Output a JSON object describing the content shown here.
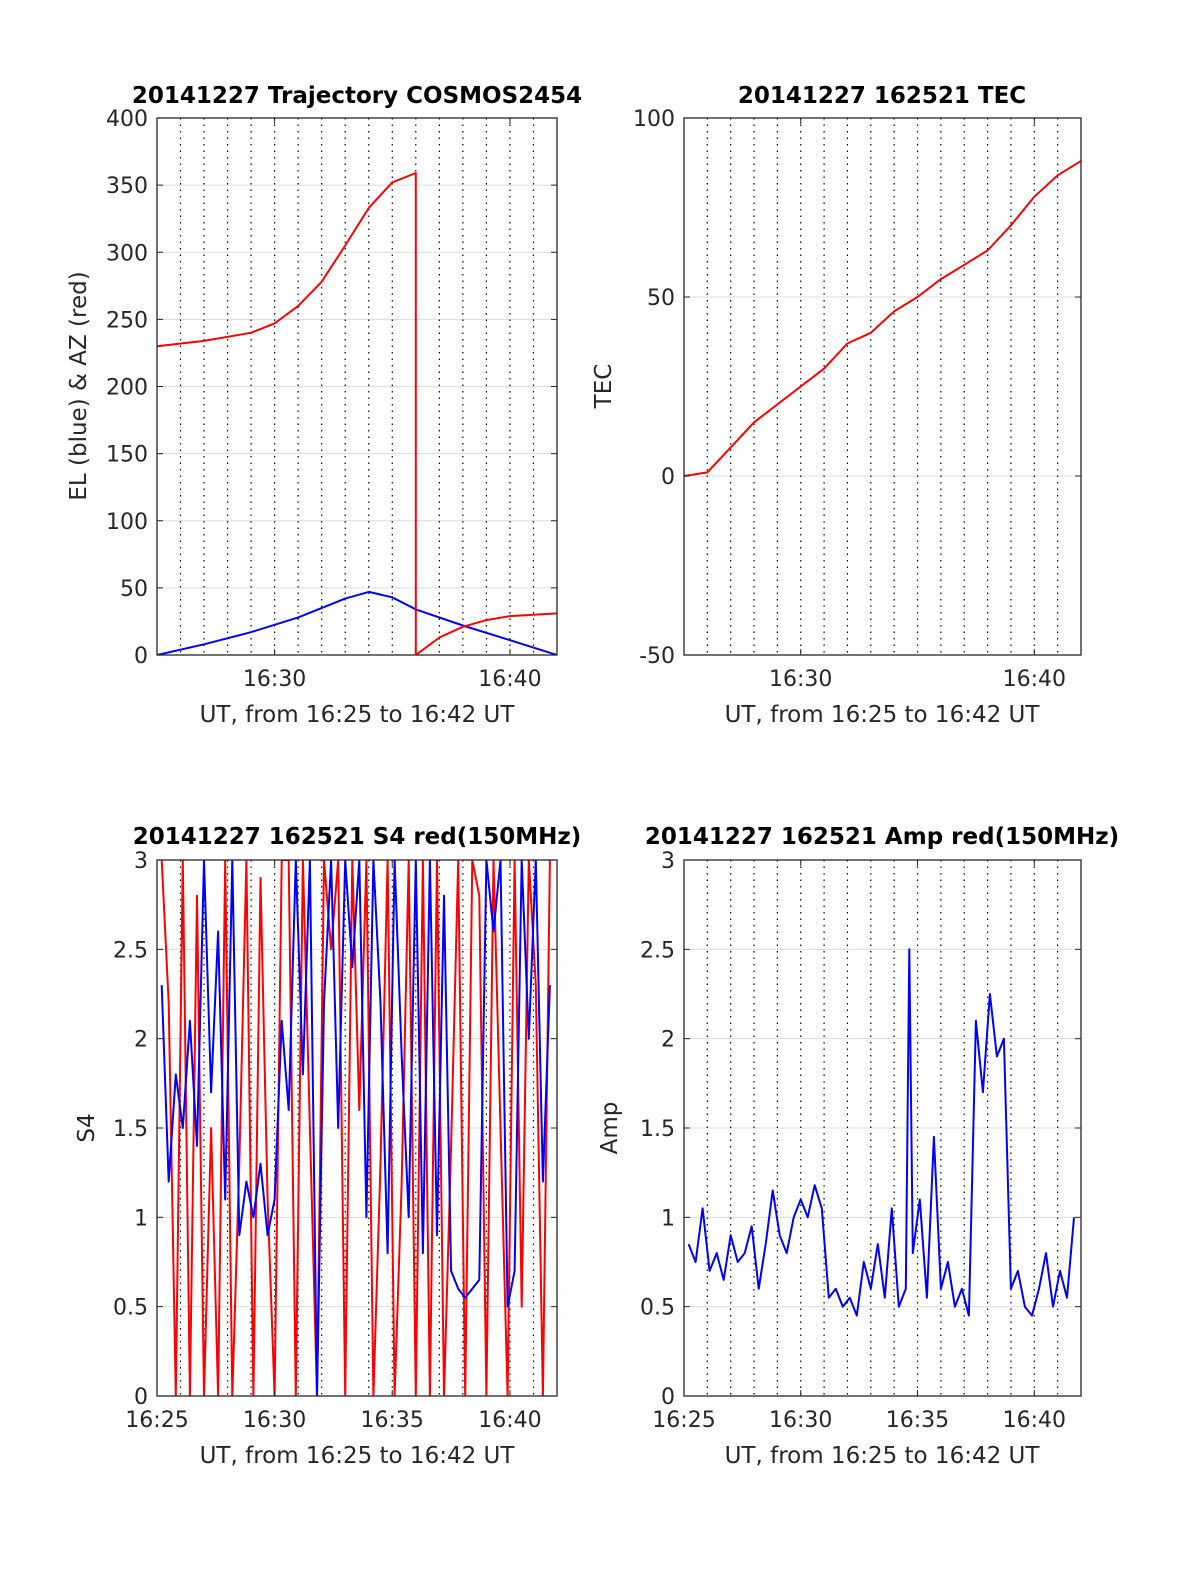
{
  "chart_data": [
    {
      "type": "line",
      "title": "20141227 Trajectory COSMOS2454",
      "xlabel": "UT, from 16:25 to 16:42 UT",
      "ylabel": "EL (blue) & AZ (red)",
      "xlim": [
        16.4167,
        16.7
      ],
      "ylim": [
        0,
        400
      ],
      "xticks": [
        {
          "value": 16.5,
          "label": "16:30"
        },
        {
          "value": 16.6667,
          "label": "16:40"
        }
      ],
      "yticks": [
        0,
        50,
        100,
        150,
        200,
        250,
        300,
        350,
        400
      ],
      "grid": true,
      "series": [
        {
          "name": "EL",
          "color": "#0000ff",
          "x": [
            16.4167,
            16.45,
            16.4833,
            16.5167,
            16.55,
            16.5667,
            16.5833,
            16.6,
            16.6333,
            16.6667,
            16.7
          ],
          "y": [
            0,
            8,
            17,
            28,
            42,
            47,
            43,
            34,
            22,
            11,
            0
          ]
        },
        {
          "name": "AZ",
          "color": "#ff0000",
          "x": [
            16.4167,
            16.45,
            16.4833,
            16.5,
            16.5167,
            16.5333,
            16.55,
            16.5667,
            16.5833,
            16.6,
            16.6,
            16.6167,
            16.6333,
            16.65,
            16.6667,
            16.7
          ],
          "y": [
            230,
            234,
            240,
            247,
            260,
            278,
            305,
            333,
            352,
            359,
            0,
            13,
            21,
            26,
            29,
            31
          ]
        }
      ]
    },
    {
      "type": "line",
      "title": "20141227 162521 TEC",
      "xlabel": "UT, from 16:25 to 16:42 UT",
      "ylabel": "TEC",
      "xlim": [
        16.4167,
        16.7
      ],
      "ylim": [
        -50,
        100
      ],
      "xticks": [
        {
          "value": 16.5,
          "label": "16:30"
        },
        {
          "value": 16.6667,
          "label": "16:40"
        }
      ],
      "yticks": [
        -50,
        0,
        50,
        100
      ],
      "grid": true,
      "series": [
        {
          "name": "TEC",
          "color": "#ff0000",
          "x": [
            16.4167,
            16.4333,
            16.45,
            16.4667,
            16.4833,
            16.5,
            16.5167,
            16.5333,
            16.55,
            16.5667,
            16.5833,
            16.6,
            16.6167,
            16.6333,
            16.65,
            16.6667,
            16.6833,
            16.7
          ],
          "y": [
            0,
            1,
            8,
            15,
            20,
            25,
            30,
            37,
            40,
            46,
            50,
            55,
            59,
            63,
            70,
            78,
            84,
            88
          ]
        }
      ]
    },
    {
      "type": "line",
      "title": "20141227 162521 S4 red(150MHz)",
      "xlabel": "UT, from 16:25 to 16:42 UT",
      "ylabel": "S4",
      "xlim": [
        16.4167,
        16.7
      ],
      "ylim": [
        0,
        3
      ],
      "xticks": [
        {
          "value": 16.4167,
          "label": "16:25"
        },
        {
          "value": 16.5,
          "label": "16:30"
        },
        {
          "value": 16.5833,
          "label": "16:35"
        },
        {
          "value": 16.6667,
          "label": "16:40"
        }
      ],
      "yticks": [
        0,
        0.5,
        1,
        1.5,
        2,
        2.5,
        3
      ],
      "grid": true,
      "series": [
        {
          "name": "S4 red",
          "color": "#ff0000",
          "x": [
            16.42,
            16.425,
            16.43,
            16.435,
            16.44,
            16.445,
            16.45,
            16.455,
            16.46,
            16.465,
            16.47,
            16.475,
            16.48,
            16.485,
            16.49,
            16.495,
            16.5,
            16.505,
            16.51,
            16.515,
            16.52,
            16.525,
            16.53,
            16.535,
            16.54,
            16.545,
            16.55,
            16.555,
            16.56,
            16.565,
            16.57,
            16.575,
            16.58,
            16.585,
            16.59,
            16.595,
            16.6,
            16.605,
            16.61,
            16.615,
            16.62,
            16.625,
            16.63,
            16.635,
            16.64,
            16.645,
            16.65,
            16.655,
            16.66,
            16.665,
            16.67,
            16.675,
            16.68,
            16.685,
            16.69,
            16.695
          ],
          "y": [
            3,
            2.2,
            0,
            3,
            0,
            2.8,
            0,
            1.5,
            0,
            3,
            0,
            1.3,
            3,
            0,
            2.9,
            1.1,
            0,
            3,
            3,
            0,
            3,
            1.5,
            0,
            3,
            2.5,
            3,
            0,
            3,
            1.6,
            3,
            0,
            1.3,
            3,
            0,
            1.2,
            3,
            0,
            3,
            0,
            3,
            0,
            1.4,
            3,
            0,
            3,
            2.8,
            0,
            3,
            1.5,
            0,
            3,
            0.5,
            3,
            2.3,
            0,
            3
          ]
        },
        {
          "name": "S4 blue",
          "color": "#0000ff",
          "x": [
            16.42,
            16.425,
            16.43,
            16.435,
            16.44,
            16.445,
            16.45,
            16.455,
            16.46,
            16.465,
            16.47,
            16.475,
            16.48,
            16.485,
            16.49,
            16.495,
            16.5,
            16.505,
            16.51,
            16.515,
            16.52,
            16.525,
            16.53,
            16.535,
            16.54,
            16.545,
            16.55,
            16.555,
            16.56,
            16.565,
            16.57,
            16.575,
            16.58,
            16.585,
            16.59,
            16.595,
            16.6,
            16.605,
            16.61,
            16.615,
            16.62,
            16.625,
            16.63,
            16.635,
            16.64,
            16.645,
            16.65,
            16.655,
            16.66,
            16.665,
            16.67,
            16.675,
            16.68,
            16.685,
            16.69,
            16.695
          ],
          "y": [
            2.3,
            1.2,
            1.8,
            1.5,
            2.1,
            1.4,
            3,
            1.7,
            2.6,
            1.1,
            3,
            0.9,
            1.2,
            1.0,
            1.3,
            0.9,
            1.1,
            2.1,
            1.6,
            3,
            1.8,
            3,
            0,
            2.2,
            3,
            1.5,
            3,
            2.4,
            3,
            1.0,
            3,
            2.2,
            0.8,
            3,
            1.9,
            1.0,
            3,
            0.8,
            3,
            0.9,
            2.8,
            0.7,
            0.6,
            0.55,
            0.6,
            0.65,
            3,
            2.6,
            3,
            0.5,
            0.7,
            3,
            2.0,
            3,
            1.2,
            2.3
          ]
        }
      ]
    },
    {
      "type": "line",
      "title": "20141227 162521 Amp red(150MHz)",
      "xlabel": "UT, from 16:25 to 16:42 UT",
      "ylabel": "Amp",
      "xlim": [
        16.4167,
        16.7
      ],
      "ylim": [
        0,
        3
      ],
      "xticks": [
        {
          "value": 16.4167,
          "label": "16:25"
        },
        {
          "value": 16.5,
          "label": "16:30"
        },
        {
          "value": 16.5833,
          "label": "16:35"
        },
        {
          "value": 16.6667,
          "label": "16:40"
        }
      ],
      "yticks": [
        0,
        0.5,
        1,
        1.5,
        2,
        2.5,
        3
      ],
      "grid": true,
      "series": [
        {
          "name": "Amp",
          "color": "#0000ff",
          "x": [
            16.42,
            16.425,
            16.43,
            16.435,
            16.44,
            16.445,
            16.45,
            16.455,
            16.46,
            16.465,
            16.47,
            16.475,
            16.48,
            16.485,
            16.49,
            16.495,
            16.5,
            16.505,
            16.51,
            16.515,
            16.52,
            16.525,
            16.53,
            16.535,
            16.54,
            16.545,
            16.55,
            16.555,
            16.56,
            16.565,
            16.57,
            16.575,
            16.5775,
            16.58,
            16.585,
            16.59,
            16.595,
            16.6,
            16.605,
            16.61,
            16.615,
            16.62,
            16.625,
            16.63,
            16.635,
            16.64,
            16.645,
            16.65,
            16.655,
            16.66,
            16.665,
            16.67,
            16.675,
            16.68,
            16.685,
            16.69,
            16.695
          ],
          "y": [
            0.85,
            0.75,
            1.05,
            0.7,
            0.8,
            0.65,
            0.9,
            0.75,
            0.8,
            0.95,
            0.6,
            0.85,
            1.15,
            0.9,
            0.8,
            1.0,
            1.1,
            1.0,
            1.18,
            1.05,
            0.55,
            0.6,
            0.5,
            0.55,
            0.45,
            0.75,
            0.6,
            0.85,
            0.55,
            1.05,
            0.5,
            0.6,
            2.5,
            0.8,
            1.1,
            0.55,
            1.45,
            0.6,
            0.75,
            0.5,
            0.6,
            0.45,
            2.1,
            1.7,
            2.25,
            1.9,
            2.0,
            0.6,
            0.7,
            0.5,
            0.45,
            0.6,
            0.8,
            0.5,
            0.7,
            0.55,
            1.0
          ]
        }
      ]
    }
  ]
}
